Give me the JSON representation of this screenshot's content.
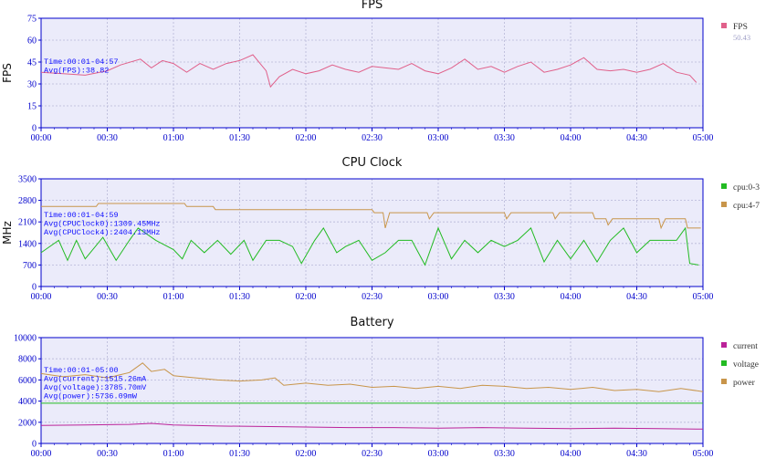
{
  "chart_data": [
    {
      "type": "line",
      "title": "FPS",
      "ylabel": "FPS",
      "xlabel": "",
      "x_ticks": [
        "00:00",
        "00:30",
        "01:00",
        "01:30",
        "02:00",
        "02:30",
        "03:00",
        "03:30",
        "04:00",
        "04:30",
        "05:00"
      ],
      "y_ticks": [
        0,
        15,
        30,
        45,
        60,
        75
      ],
      "ylim": [
        0,
        75
      ],
      "xlim_seconds": [
        0,
        300
      ],
      "grid": true,
      "legend_position": "right",
      "annotation": [
        "Time:00:01-04:57",
        "Avg(FPS):38.82"
      ],
      "series": [
        {
          "name": "FPS",
          "legend_value": "50.43",
          "color": "#e0608a",
          "points": [
            [
              0,
              38
            ],
            [
              10,
              37
            ],
            [
              20,
              36
            ],
            [
              30,
              39
            ],
            [
              36,
              43
            ],
            [
              45,
              47
            ],
            [
              50,
              41
            ],
            [
              55,
              46
            ],
            [
              60,
              44
            ],
            [
              66,
              38
            ],
            [
              72,
              44
            ],
            [
              78,
              40
            ],
            [
              84,
              44
            ],
            [
              90,
              46
            ],
            [
              96,
              50
            ],
            [
              102,
              39
            ],
            [
              104,
              28
            ],
            [
              108,
              35
            ],
            [
              114,
              40
            ],
            [
              120,
              37
            ],
            [
              126,
              39
            ],
            [
              132,
              43
            ],
            [
              138,
              40
            ],
            [
              144,
              38
            ],
            [
              150,
              42
            ],
            [
              156,
              41
            ],
            [
              162,
              40
            ],
            [
              168,
              44
            ],
            [
              174,
              39
            ],
            [
              180,
              37
            ],
            [
              186,
              41
            ],
            [
              192,
              47
            ],
            [
              198,
              40
            ],
            [
              204,
              42
            ],
            [
              210,
              38
            ],
            [
              216,
              42
            ],
            [
              222,
              45
            ],
            [
              228,
              38
            ],
            [
              234,
              40
            ],
            [
              240,
              43
            ],
            [
              246,
              48
            ],
            [
              252,
              40
            ],
            [
              258,
              39
            ],
            [
              264,
              40
            ],
            [
              270,
              38
            ],
            [
              276,
              40
            ],
            [
              282,
              44
            ],
            [
              288,
              38
            ],
            [
              294,
              36
            ],
            [
              297,
              31
            ]
          ]
        }
      ]
    },
    {
      "type": "line",
      "title": "CPU Clock",
      "ylabel": "MHz",
      "xlabel": "",
      "x_ticks": [
        "00:00",
        "00:30",
        "01:00",
        "01:30",
        "02:00",
        "02:30",
        "03:00",
        "03:30",
        "04:00",
        "04:30",
        "05:00"
      ],
      "y_ticks": [
        0,
        700,
        1400,
        2100,
        2800,
        3500
      ],
      "ylim": [
        0,
        3500
      ],
      "xlim_seconds": [
        0,
        300
      ],
      "grid": true,
      "legend_position": "right",
      "annotation": [
        "Time:00:01-04:59",
        "Avg(CPUClock0):1309.45MHz",
        "Avg(CPUClock4):2404.13MHz"
      ],
      "series": [
        {
          "name": "cpu:0-3",
          "color": "#22bb22",
          "points": [
            [
              0,
              1100
            ],
            [
              8,
              1500
            ],
            [
              12,
              850
            ],
            [
              16,
              1500
            ],
            [
              20,
              900
            ],
            [
              28,
              1600
            ],
            [
              34,
              850
            ],
            [
              40,
              1500
            ],
            [
              44,
              1900
            ],
            [
              52,
              1500
            ],
            [
              60,
              1200
            ],
            [
              64,
              900
            ],
            [
              68,
              1500
            ],
            [
              74,
              1100
            ],
            [
              80,
              1500
            ],
            [
              86,
              1050
            ],
            [
              92,
              1500
            ],
            [
              96,
              850
            ],
            [
              102,
              1500
            ],
            [
              108,
              1500
            ],
            [
              114,
              1300
            ],
            [
              118,
              750
            ],
            [
              124,
              1500
            ],
            [
              128,
              1900
            ],
            [
              134,
              1100
            ],
            [
              138,
              1300
            ],
            [
              144,
              1500
            ],
            [
              150,
              850
            ],
            [
              156,
              1100
            ],
            [
              162,
              1500
            ],
            [
              168,
              1500
            ],
            [
              174,
              700
            ],
            [
              180,
              1900
            ],
            [
              186,
              900
            ],
            [
              192,
              1500
            ],
            [
              198,
              1100
            ],
            [
              204,
              1500
            ],
            [
              210,
              1300
            ],
            [
              216,
              1500
            ],
            [
              222,
              1900
            ],
            [
              228,
              800
            ],
            [
              234,
              1500
            ],
            [
              240,
              900
            ],
            [
              246,
              1500
            ],
            [
              252,
              800
            ],
            [
              258,
              1500
            ],
            [
              264,
              1900
            ],
            [
              270,
              1100
            ],
            [
              276,
              1500
            ],
            [
              282,
              1500
            ],
            [
              288,
              1500
            ],
            [
              292,
              1900
            ],
            [
              294,
              750
            ],
            [
              298,
              700
            ]
          ]
        },
        {
          "name": "cpu:4-7",
          "color": "#c8954a",
          "points": [
            [
              0,
              2600
            ],
            [
              25,
              2600
            ],
            [
              26,
              2700
            ],
            [
              65,
              2700
            ],
            [
              66,
              2600
            ],
            [
              78,
              2600
            ],
            [
              79,
              2500
            ],
            [
              150,
              2500
            ],
            [
              151,
              2400
            ],
            [
              155,
              2400
            ],
            [
              156,
              1900
            ],
            [
              158,
              2400
            ],
            [
              175,
              2400
            ],
            [
              176,
              2200
            ],
            [
              178,
              2400
            ],
            [
              210,
              2400
            ],
            [
              211,
              2200
            ],
            [
              213,
              2400
            ],
            [
              232,
              2400
            ],
            [
              233,
              2200
            ],
            [
              235,
              2400
            ],
            [
              250,
              2400
            ],
            [
              251,
              2200
            ],
            [
              256,
              2200
            ],
            [
              257,
              2000
            ],
            [
              259,
              2200
            ],
            [
              280,
              2200
            ],
            [
              281,
              1900
            ],
            [
              283,
              2200
            ],
            [
              292,
              2200
            ],
            [
              293,
              1900
            ],
            [
              299,
              1900
            ]
          ]
        }
      ]
    },
    {
      "type": "line",
      "title": "Battery",
      "ylabel": "",
      "xlabel": "",
      "x_ticks": [
        "00:00",
        "00:30",
        "01:00",
        "01:30",
        "02:00",
        "02:30",
        "03:00",
        "03:30",
        "04:00",
        "04:30",
        "05:00"
      ],
      "y_ticks": [
        0,
        2000,
        4000,
        6000,
        8000,
        10000
      ],
      "ylim": [
        0,
        10000
      ],
      "xlim_seconds": [
        0,
        300
      ],
      "grid": true,
      "legend_position": "right",
      "annotation": [
        "Time:00:01-05:00",
        "Avg(current):1515.26mA",
        "Avg(voltage):3785.70mV",
        "Avg(power):5736.09mW"
      ],
      "series": [
        {
          "name": "current",
          "color": "#bb2299",
          "points": [
            [
              0,
              1700
            ],
            [
              20,
              1750
            ],
            [
              40,
              1800
            ],
            [
              50,
              1900
            ],
            [
              60,
              1750
            ],
            [
              80,
              1650
            ],
            [
              100,
              1600
            ],
            [
              120,
              1550
            ],
            [
              140,
              1500
            ],
            [
              160,
              1500
            ],
            [
              180,
              1450
            ],
            [
              200,
              1500
            ],
            [
              220,
              1450
            ],
            [
              240,
              1400
            ],
            [
              260,
              1450
            ],
            [
              280,
              1400
            ],
            [
              300,
              1350
            ]
          ]
        },
        {
          "name": "voltage",
          "color": "#22bb22",
          "points": [
            [
              0,
              3800
            ],
            [
              300,
              3800
            ]
          ]
        },
        {
          "name": "power",
          "color": "#c8954a",
          "points": [
            [
              0,
              6600
            ],
            [
              10,
              6300
            ],
            [
              20,
              6500
            ],
            [
              30,
              6200
            ],
            [
              40,
              6700
            ],
            [
              46,
              7600
            ],
            [
              50,
              6800
            ],
            [
              56,
              7000
            ],
            [
              60,
              6400
            ],
            [
              70,
              6200
            ],
            [
              80,
              6000
            ],
            [
              90,
              5900
            ],
            [
              100,
              6000
            ],
            [
              106,
              6200
            ],
            [
              110,
              5500
            ],
            [
              120,
              5700
            ],
            [
              130,
              5500
            ],
            [
              140,
              5600
            ],
            [
              150,
              5300
            ],
            [
              160,
              5400
            ],
            [
              170,
              5200
            ],
            [
              180,
              5400
            ],
            [
              190,
              5200
            ],
            [
              200,
              5500
            ],
            [
              210,
              5400
            ],
            [
              220,
              5200
            ],
            [
              230,
              5300
            ],
            [
              240,
              5100
            ],
            [
              250,
              5300
            ],
            [
              260,
              5000
            ],
            [
              270,
              5100
            ],
            [
              280,
              4900
            ],
            [
              290,
              5200
            ],
            [
              300,
              4900
            ]
          ]
        }
      ]
    }
  ]
}
